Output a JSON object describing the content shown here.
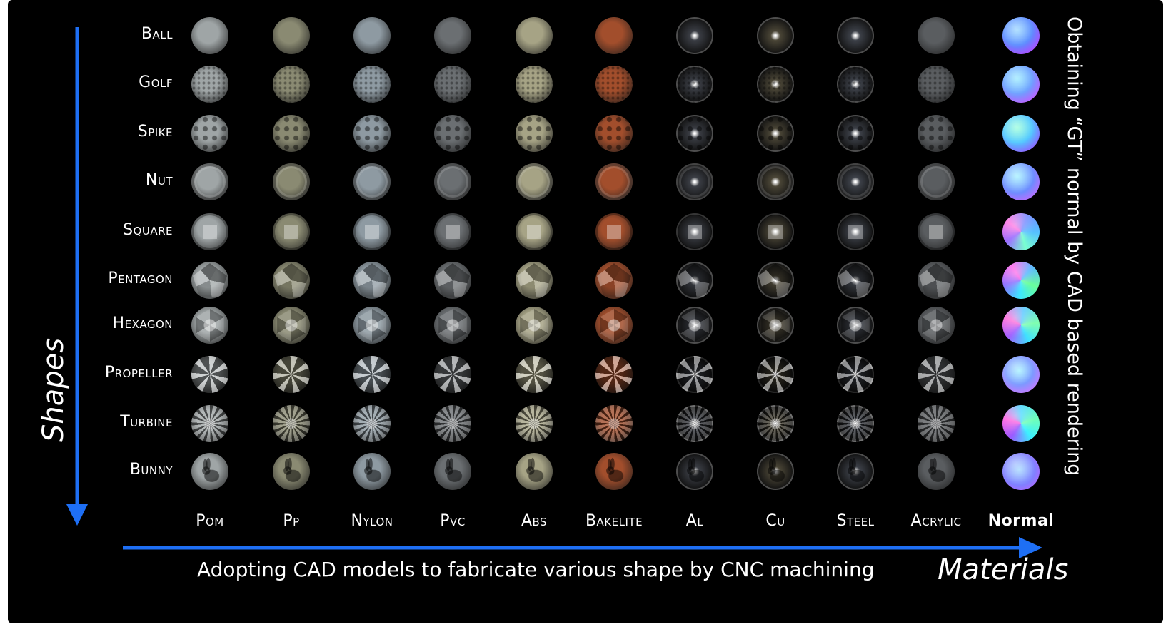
{
  "shapes_label": "Shapes",
  "materials_label": "Materials",
  "bottom_caption": "Adopting CAD models to fabricate various shape by CNC machining",
  "side_caption": "Obtaining “GT” normal by CAD based rendering",
  "shapes": [
    {
      "label": "Ball",
      "key": "ball"
    },
    {
      "label": "Golf",
      "key": "golf"
    },
    {
      "label": "Spike",
      "key": "spike"
    },
    {
      "label": "Nut",
      "key": "nut"
    },
    {
      "label": "Square",
      "key": "square"
    },
    {
      "label": "Pentagon",
      "key": "pentagon"
    },
    {
      "label": "Hexagon",
      "key": "hexagon"
    },
    {
      "label": "Propeller",
      "key": "propeller"
    },
    {
      "label": "Turbine",
      "key": "turbine"
    },
    {
      "label": "Bunny",
      "key": "bunny"
    }
  ],
  "materials": [
    {
      "label": "Pom",
      "color": "#9fa5a6"
    },
    {
      "label": "Pp",
      "color": "#8a8a72"
    },
    {
      "label": "Nylon",
      "color": "#8e9aa2"
    },
    {
      "label": "Pvc",
      "color": "#6b6f72"
    },
    {
      "label": "Abs",
      "color": "#a6a385"
    },
    {
      "label": "Bakelite",
      "color": "#a24e2c"
    },
    {
      "label": "Al",
      "color": "#3a3d44"
    },
    {
      "label": "Cu",
      "color": "#4a4536"
    },
    {
      "label": "Steel",
      "color": "#3c4048"
    },
    {
      "label": "Acrylic",
      "color": "#5a5d60"
    },
    {
      "label": "Normal",
      "normal": true
    }
  ],
  "colors": {
    "arrow": "#1e6ff5",
    "background": "#000000",
    "text": "#ffffff"
  }
}
